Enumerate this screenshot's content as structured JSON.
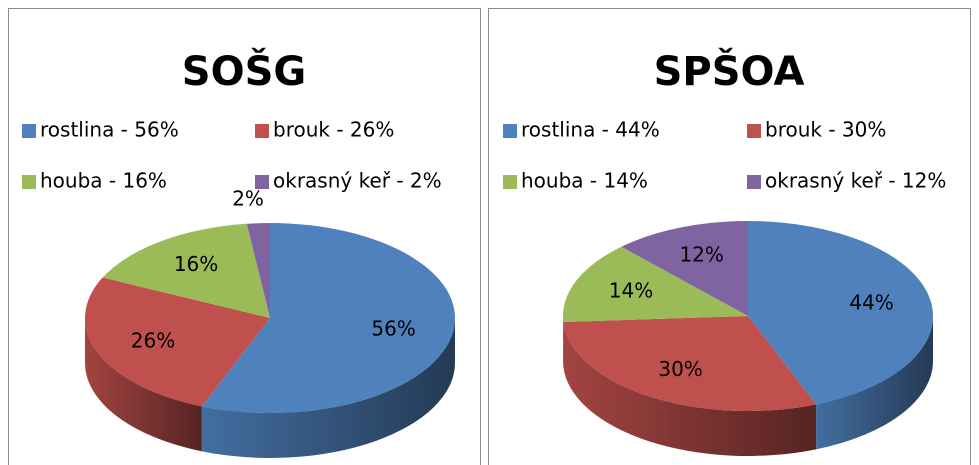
{
  "chart_data": [
    {
      "type": "pie",
      "title": "SOŠG",
      "categories": [
        "rostlina - 56%",
        "brouk - 26%",
        "houba - 16%",
        "okrasný keř - 2%"
      ],
      "values": [
        56,
        26,
        16,
        2
      ],
      "value_labels": [
        "56%",
        "26%",
        "16%",
        "2%"
      ],
      "colors": [
        "#4f81bd",
        "#c0504d",
        "#9bbb59",
        "#8064a2"
      ]
    },
    {
      "type": "pie",
      "title": "SPŠOA",
      "categories": [
        "rostlina - 44%",
        "brouk - 30%",
        "houba - 14%",
        "okrasný keř - 12%"
      ],
      "values": [
        44,
        30,
        14,
        12
      ],
      "value_labels": [
        "44%",
        "30%",
        "14%",
        "12%"
      ],
      "colors": [
        "#4f81bd",
        "#c0504d",
        "#9bbb59",
        "#8064a2"
      ]
    }
  ]
}
